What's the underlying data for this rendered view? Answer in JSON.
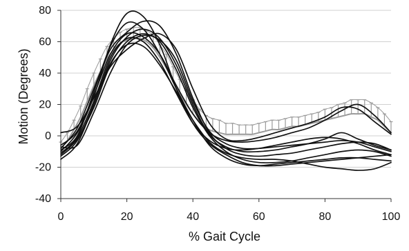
{
  "chart_data": {
    "type": "line",
    "title": "",
    "xlabel": "% Gait Cycle",
    "ylabel": "Motion (Degrees)",
    "xlim": [
      0,
      100
    ],
    "ylim": [
      -40,
      80
    ],
    "x_ticks": [
      0,
      20,
      40,
      60,
      80,
      100
    ],
    "y_ticks": [
      -40,
      -20,
      0,
      20,
      40,
      60,
      80
    ],
    "grid": "horizontal",
    "legend": "none",
    "colors": {
      "series": "#111111",
      "reference_band": "#9a9a9a",
      "grid": "#d0d0d0",
      "axis": "#333333"
    },
    "reference_band": {
      "x": [
        0,
        2,
        4,
        6,
        8,
        10,
        12,
        14,
        16,
        18,
        20,
        22,
        24,
        26,
        28,
        30,
        32,
        34,
        36,
        38,
        40,
        42,
        44,
        46,
        48,
        50,
        52,
        54,
        56,
        58,
        60,
        62,
        64,
        66,
        68,
        70,
        72,
        74,
        76,
        78,
        80,
        82,
        84,
        86,
        88,
        90,
        92,
        94,
        96,
        98,
        100
      ],
      "mean": [
        -8,
        -3,
        4,
        12,
        22,
        32,
        41,
        49,
        55,
        59,
        61,
        62,
        62,
        60,
        56,
        50,
        43,
        35,
        27,
        20,
        14,
        9,
        5,
        3,
        2,
        1,
        1,
        1,
        1,
        1,
        2,
        3,
        4,
        4,
        5,
        6,
        6,
        7,
        8,
        9,
        10,
        11,
        12,
        13,
        14,
        14,
        14,
        12,
        10,
        6,
        2
      ],
      "sd": [
        4,
        5,
        6,
        7,
        8,
        8,
        8,
        8,
        7,
        7,
        7,
        7,
        7,
        7,
        8,
        8,
        9,
        9,
        9,
        9,
        9,
        8,
        8,
        8,
        8,
        7,
        7,
        6,
        6,
        6,
        6,
        6,
        6,
        6,
        6,
        6,
        6,
        6,
        6,
        6,
        7,
        7,
        8,
        8,
        9,
        9,
        9,
        9,
        8,
        8,
        7
      ]
    },
    "x": [
      0,
      5,
      10,
      15,
      20,
      25,
      30,
      35,
      40,
      45,
      50,
      55,
      60,
      65,
      70,
      75,
      80,
      85,
      90,
      95,
      100
    ],
    "series": [
      {
        "values": [
          -10,
          2,
          25,
          58,
          78,
          76,
          58,
          30,
          8,
          -5,
          -12,
          -17,
          -19,
          -19,
          -18,
          -17,
          -16,
          -15,
          -14,
          -13,
          -12
        ]
      },
      {
        "values": [
          -8,
          5,
          30,
          55,
          66,
          73,
          70,
          52,
          24,
          2,
          -8,
          -12,
          -13,
          -12,
          -11,
          -9,
          -7,
          -5,
          -4,
          -5,
          -9
        ]
      },
      {
        "values": [
          -12,
          -2,
          18,
          45,
          60,
          65,
          60,
          42,
          18,
          0,
          -10,
          -15,
          -17,
          -17,
          -16,
          -14,
          -12,
          -10,
          -9,
          -10,
          -13
        ]
      },
      {
        "values": [
          -6,
          3,
          26,
          52,
          65,
          63,
          52,
          32,
          14,
          2,
          -3,
          -4,
          -3,
          -1,
          2,
          5,
          10,
          16,
          20,
          13,
          2
        ]
      },
      {
        "values": [
          -15,
          -5,
          20,
          46,
          58,
          57,
          45,
          28,
          10,
          -4,
          -11,
          -14,
          -15,
          -15,
          -16,
          -18,
          -20,
          -21,
          -22,
          -21,
          -17
        ]
      },
      {
        "values": [
          -9,
          0,
          28,
          57,
          72,
          68,
          52,
          30,
          10,
          -6,
          -14,
          -18,
          -19,
          -18,
          -17,
          -16,
          -15,
          -14,
          -14,
          -15,
          -16
        ]
      },
      {
        "values": [
          -11,
          -1,
          22,
          50,
          62,
          60,
          47,
          27,
          8,
          -3,
          -8,
          -9,
          -8,
          -6,
          -4,
          -2,
          -1,
          -2,
          -5,
          -9,
          -12
        ]
      },
      {
        "values": [
          2,
          6,
          24,
          44,
          55,
          62,
          65,
          55,
          30,
          8,
          -2,
          -3,
          -1,
          2,
          5,
          8,
          12,
          18,
          17,
          9,
          1
        ]
      },
      {
        "values": [
          -7,
          -6,
          15,
          40,
          58,
          64,
          61,
          48,
          22,
          3,
          -5,
          -8,
          -8,
          -7,
          -6,
          -5,
          -4,
          -3,
          -4,
          -7,
          -10
        ]
      },
      {
        "values": [
          -13,
          -3,
          20,
          48,
          63,
          68,
          62,
          45,
          20,
          1,
          -7,
          -10,
          -10,
          -9,
          -7,
          -5,
          -2,
          2,
          -2,
          -6,
          -9
        ]
      }
    ]
  }
}
